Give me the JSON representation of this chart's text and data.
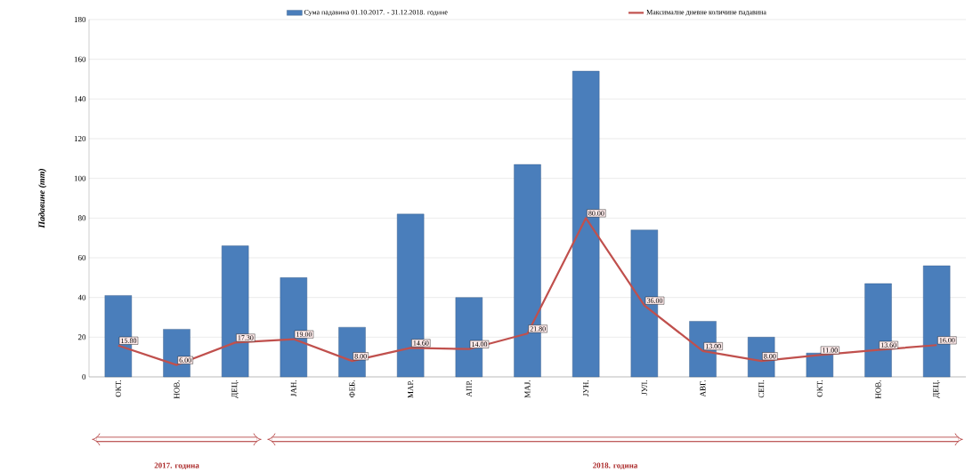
{
  "chart_data": {
    "type": "bar",
    "ylabel": "**Падавине (mm)**",
    "categories": [
      "ОКТ.",
      "НОВ.",
      "ДЕЦ.",
      "ЈАН.",
      "ФЕБ.",
      "МАР.",
      "АПР.",
      "МАЈ.",
      "ЈУН.",
      "ЈУЛ.",
      "АВГ.",
      "СЕП.",
      "ОКТ.",
      "НОВ.",
      "ДЕЦ."
    ],
    "series": [
      {
        "name": "Сума падавина 01.10.2017. - 31.12.2018. године",
        "color": "#4a7ebb",
        "values": [
          41,
          24,
          66,
          50,
          25,
          82,
          40,
          107,
          154,
          74,
          28,
          20,
          12,
          47,
          56
        ]
      },
      {
        "name": "Максималне дневне количине падавина",
        "type": "line",
        "color": "#c0504d",
        "values": [
          15.8,
          6.0,
          17.3,
          19.0,
          8.0,
          14.6,
          14.0,
          21.8,
          80.0,
          36.0,
          13.0,
          8.0,
          11.0,
          13.6,
          16.0
        ],
        "value_labels": [
          "15.80",
          "6.00",
          "17.30",
          "19.00",
          "8.00",
          "14.60",
          "14.00",
          "21.80",
          "80.00",
          "36.00",
          "13.00",
          "8.00",
          "11.00",
          "13.60",
          "16.00"
        ]
      }
    ],
    "ylim": [
      0,
      180
    ],
    "yticks": [
      0,
      20,
      40,
      60,
      80,
      100,
      120,
      140,
      160,
      180
    ],
    "grid": "y",
    "legend": "top",
    "line_style": "solid",
    "annotations": [
      "**2017. година**",
      "**2018. година**"
    ]
  }
}
